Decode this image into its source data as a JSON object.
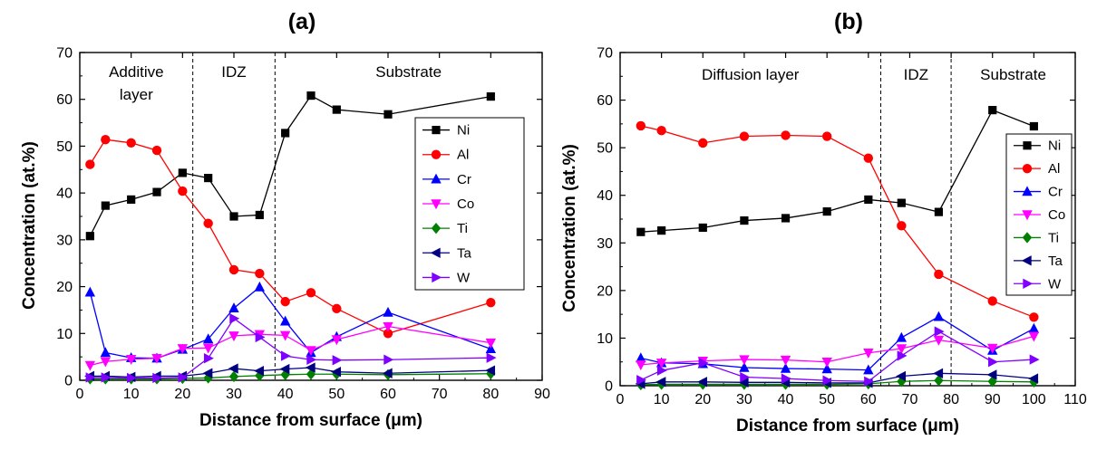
{
  "chart_data": [
    {
      "type": "line",
      "title": "(a)",
      "xlabel": "Distance from surface (μm)",
      "ylabel": "Concentration (at.%)",
      "xlim": [
        0,
        90
      ],
      "ylim": [
        0,
        70
      ],
      "xticks": [
        0,
        10,
        20,
        30,
        40,
        50,
        60,
        70,
        80,
        90
      ],
      "yticks": [
        0,
        10,
        20,
        30,
        40,
        50,
        60,
        70
      ],
      "grid": false,
      "legend_position": "right",
      "regions": [
        {
          "label_lines": [
            "Additive",
            "layer"
          ],
          "from": 0,
          "to": 22
        },
        {
          "label_lines": [
            "IDZ"
          ],
          "from": 22,
          "to": 38
        },
        {
          "label_lines": [
            "Substrate"
          ],
          "from": 38,
          "to": 90
        }
      ],
      "boundaries": [
        22,
        38
      ],
      "x": [
        2,
        5,
        10,
        15,
        20,
        25,
        30,
        35,
        40,
        45,
        50,
        60,
        80
      ],
      "series": [
        {
          "name": "Ni",
          "color": "#000000",
          "marker": "square",
          "values": [
            30.8,
            37.3,
            38.6,
            40.2,
            44.3,
            43.2,
            35.0,
            35.3,
            52.8,
            60.8,
            57.8,
            56.8,
            60.6
          ]
        },
        {
          "name": "Al",
          "color": "#ff0000",
          "marker": "circle",
          "values": [
            46.1,
            51.4,
            50.7,
            49.1,
            40.4,
            33.5,
            23.6,
            22.8,
            16.8,
            18.7,
            15.3,
            10.0,
            16.6
          ]
        },
        {
          "name": "Cr",
          "color": "#0000ff",
          "marker": "triangle-up",
          "values": [
            18.8,
            5.9,
            4.8,
            4.7,
            6.6,
            8.8,
            15.4,
            19.9,
            12.6,
            5.9,
            9.3,
            14.5,
            6.7
          ]
        },
        {
          "name": "Co",
          "color": "#ff00ff",
          "marker": "triangle-down",
          "values": [
            3.2,
            4.0,
            4.5,
            4.7,
            6.8,
            6.9,
            9.5,
            9.8,
            9.6,
            6.4,
            8.7,
            11.5,
            8.0
          ]
        },
        {
          "name": "Ti",
          "color": "#008000",
          "marker": "diamond",
          "values": [
            0.3,
            0.3,
            0.3,
            0.3,
            0.4,
            0.5,
            0.8,
            1.0,
            1.2,
            1.3,
            1.3,
            1.2,
            1.4
          ]
        },
        {
          "name": "Ta",
          "color": "#000080",
          "marker": "triangle-left",
          "values": [
            0.9,
            0.9,
            0.7,
            0.9,
            0.9,
            1.5,
            2.5,
            2.0,
            2.4,
            2.7,
            1.8,
            1.5,
            2.1
          ]
        },
        {
          "name": "W",
          "color": "#8000ff",
          "marker": "triangle-right",
          "values": [
            0.6,
            0.6,
            0.5,
            0.5,
            0.6,
            4.7,
            13.2,
            9.2,
            5.2,
            4.4,
            4.3,
            4.4,
            4.8
          ]
        }
      ]
    },
    {
      "type": "line",
      "title": "(b)",
      "xlabel": "Distance from surface (μm)",
      "ylabel": "Concentration (at.%)",
      "xlim": [
        0,
        110
      ],
      "ylim": [
        0,
        70
      ],
      "xticks": [
        0,
        10,
        20,
        30,
        40,
        50,
        60,
        70,
        80,
        90,
        100,
        110
      ],
      "yticks": [
        0,
        10,
        20,
        30,
        40,
        50,
        60,
        70
      ],
      "grid": false,
      "legend_position": "right",
      "regions": [
        {
          "label_lines": [
            "Diffusion layer"
          ],
          "from": 0,
          "to": 63
        },
        {
          "label_lines": [
            "IDZ"
          ],
          "from": 63,
          "to": 80
        },
        {
          "label_lines": [
            "Substrate"
          ],
          "from": 80,
          "to": 110
        }
      ],
      "boundaries": [
        63,
        80
      ],
      "x": [
        5,
        10,
        20,
        30,
        40,
        50,
        60,
        68,
        77,
        90,
        100
      ],
      "series": [
        {
          "name": "Ni",
          "color": "#000000",
          "marker": "square",
          "values": [
            32.3,
            32.6,
            33.2,
            34.7,
            35.2,
            36.6,
            39.1,
            38.4,
            36.5,
            57.9,
            54.5
          ]
        },
        {
          "name": "Al",
          "color": "#ff0000",
          "marker": "circle",
          "values": [
            54.6,
            53.6,
            51.0,
            52.4,
            52.6,
            52.4,
            47.8,
            33.6,
            23.4,
            17.8,
            14.4
          ]
        },
        {
          "name": "Cr",
          "color": "#0000ff",
          "marker": "triangle-up",
          "values": [
            5.8,
            4.8,
            4.6,
            3.8,
            3.6,
            3.5,
            3.3,
            10.1,
            14.5,
            7.4,
            12.0
          ]
        },
        {
          "name": "Co",
          "color": "#ff00ff",
          "marker": "triangle-down",
          "values": [
            4.4,
            4.8,
            5.2,
            5.5,
            5.4,
            5.0,
            6.9,
            7.8,
            9.6,
            7.9,
            10.4
          ]
        },
        {
          "name": "Ti",
          "color": "#008000",
          "marker": "diamond",
          "values": [
            0.2,
            0.3,
            0.3,
            0.3,
            0.3,
            0.3,
            0.4,
            0.9,
            1.1,
            0.9,
            0.8
          ]
        },
        {
          "name": "Ta",
          "color": "#000080",
          "marker": "triangle-left",
          "values": [
            0.4,
            0.8,
            0.8,
            0.7,
            0.7,
            0.6,
            0.6,
            2.0,
            2.6,
            2.3,
            1.5
          ]
        },
        {
          "name": "W",
          "color": "#8000ff",
          "marker": "triangle-right",
          "values": [
            1.2,
            3.2,
            4.8,
            1.8,
            1.5,
            1.1,
            0.9,
            6.3,
            11.4,
            5.0,
            5.5
          ]
        }
      ]
    }
  ]
}
